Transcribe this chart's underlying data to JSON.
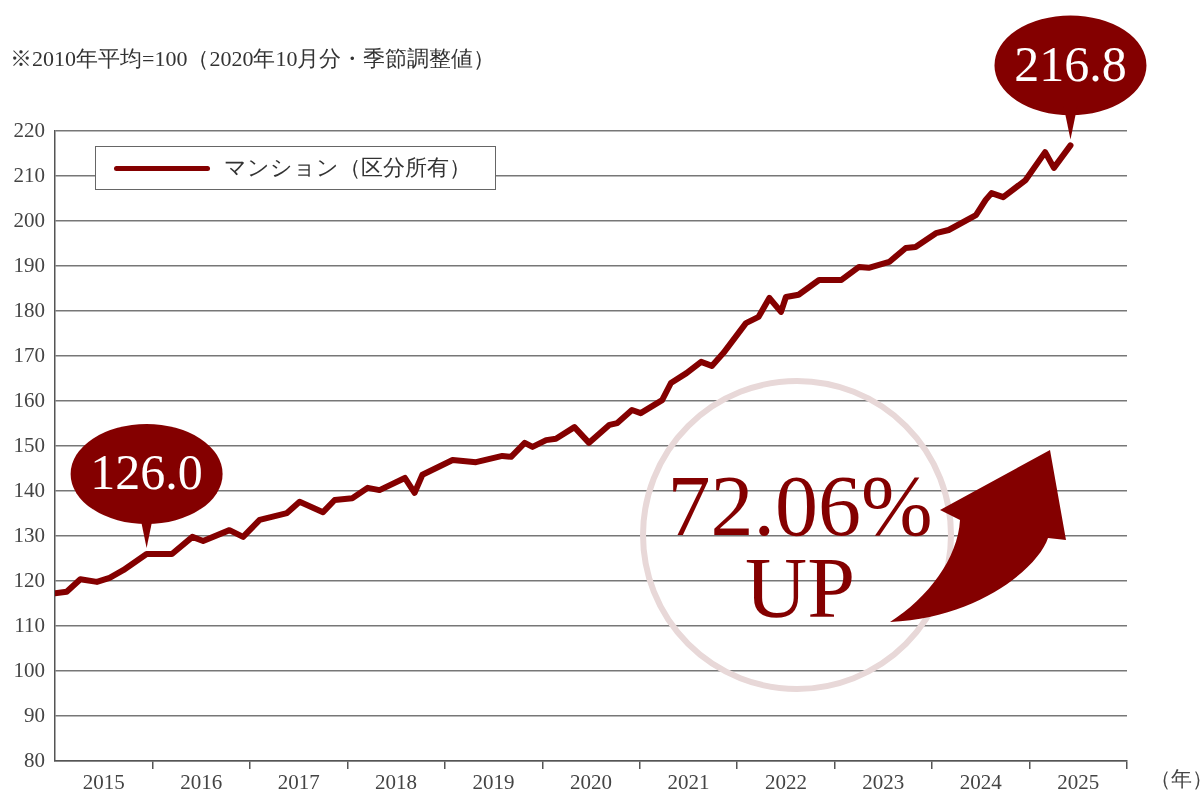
{
  "chart_data": {
    "type": "line",
    "xlabel": "（年）",
    "annotations": [
      "※2010年平均=100（2020年10月分・季節調整値）",
      "72.06%\nUP",
      {
        "text": "126.0",
        "x": 2015.94,
        "y": 126
      },
      {
        "text": "216.8",
        "x": 2025.42,
        "y": 216.8
      }
    ],
    "xlim": [
      2015,
      2026
    ],
    "ylim": [
      80,
      220
    ],
    "xticks": [
      {
        "value": 2015.5,
        "label": "2015"
      },
      {
        "value": 2016,
        "label": null
      },
      {
        "value": 2016.5,
        "label": "2016"
      },
      {
        "value": 2017,
        "label": null
      },
      {
        "value": 2017.5,
        "label": "2017"
      },
      {
        "value": 2018,
        "label": null
      },
      {
        "value": 2018.5,
        "label": "2018"
      },
      {
        "value": 2019,
        "label": null
      },
      {
        "value": 2019.5,
        "label": "2019"
      },
      {
        "value": 2020,
        "label": null
      },
      {
        "value": 2020.5,
        "label": "2020"
      },
      {
        "value": 2021,
        "label": null
      },
      {
        "value": 2021.5,
        "label": "2021"
      },
      {
        "value": 2022,
        "label": null
      },
      {
        "value": 2022.5,
        "label": "2022"
      },
      {
        "value": 2023,
        "label": null
      },
      {
        "value": 2023.5,
        "label": "2023"
      },
      {
        "value": 2024,
        "label": null
      },
      {
        "value": 2024.5,
        "label": "2024"
      },
      {
        "value": 2025,
        "label": null
      },
      {
        "value": 2025.5,
        "label": "2025"
      },
      {
        "value": 2026,
        "label": null
      }
    ],
    "yticks": [
      80,
      90,
      100,
      110,
      120,
      130,
      140,
      150,
      160,
      170,
      180,
      190,
      200,
      210,
      220
    ],
    "grid": "y",
    "legend": "top left",
    "marker": "none",
    "line_style": "solid",
    "series": [
      {
        "name": "マンション（区分所有）",
        "color": "#840000",
        "x": [
          2015.0,
          2015.12,
          2015.26,
          2015.43,
          2015.56,
          2015.7,
          2015.94,
          2016.06,
          2016.2,
          2016.41,
          2016.52,
          2016.79,
          2016.93,
          2017.1,
          2017.38,
          2017.51,
          2017.75,
          2017.87,
          2018.05,
          2018.21,
          2018.33,
          2018.59,
          2018.69,
          2018.77,
          2019.08,
          2019.32,
          2019.59,
          2019.68,
          2019.82,
          2019.9,
          2020.04,
          2020.14,
          2020.33,
          2020.48,
          2020.69,
          2020.77,
          2020.92,
          2021.01,
          2021.23,
          2021.32,
          2021.48,
          2021.63,
          2021.74,
          2021.86,
          2022.09,
          2022.22,
          2022.33,
          2022.45,
          2022.5,
          2022.63,
          2022.84,
          2023.07,
          2023.25,
          2023.35,
          2023.56,
          2023.73,
          2023.83,
          2024.04,
          2024.17,
          2024.45,
          2024.55,
          2024.61,
          2024.73,
          2024.96,
          2025.16,
          2025.25,
          2025.42
        ],
        "values": [
          117.3,
          117.6,
          120.4,
          119.8,
          120.7,
          122.4,
          126,
          126,
          126,
          129.8,
          128.9,
          131.3,
          129.8,
          133.6,
          135.1,
          137.6,
          135.3,
          138,
          138.4,
          140.7,
          140.2,
          142.9,
          139.6,
          143.6,
          146.9,
          146.4,
          147.8,
          147.6,
          150.7,
          149.8,
          151.3,
          151.6,
          154.2,
          150.7,
          154.7,
          155.1,
          158,
          157.3,
          160.2,
          164,
          166.2,
          168.7,
          167.8,
          170.7,
          177.3,
          178.7,
          182.9,
          179.8,
          183.1,
          183.6,
          186.9,
          186.9,
          189.8,
          189.6,
          190.9,
          194,
          194.2,
          197.3,
          198,
          201.3,
          204.7,
          206.2,
          205.3,
          209.1,
          215.3,
          211.8,
          216.8
        ]
      }
    ]
  }
}
